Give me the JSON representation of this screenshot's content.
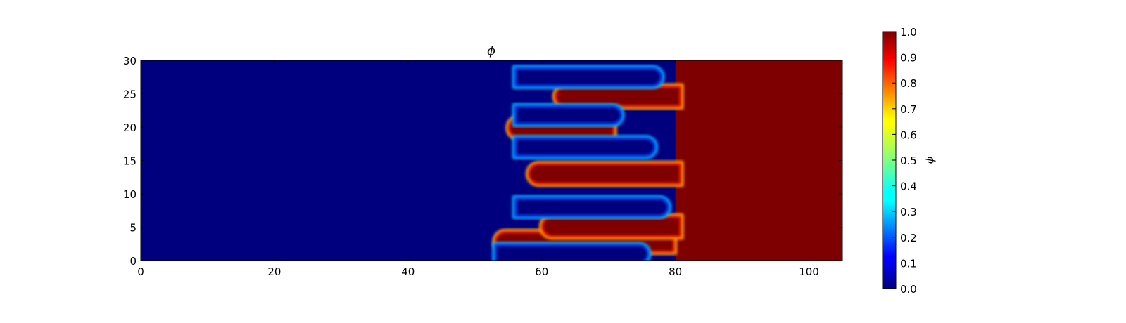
{
  "chart_data": {
    "type": "heatmap",
    "title": "ϕ",
    "xlabel": "",
    "ylabel": "",
    "xlim": [
      0,
      105
    ],
    "ylim": [
      0,
      30
    ],
    "x_ticks": [
      0,
      20,
      40,
      60,
      80,
      100
    ],
    "y_ticks": [
      0,
      5,
      10,
      15,
      20,
      25,
      30
    ],
    "colormap": "jet",
    "low_color": "#00007f",
    "high_color": "#7f0000",
    "colorbar": {
      "label": "ϕ",
      "range": [
        0,
        1
      ],
      "ticks": [
        "0.0",
        "0.1",
        "0.2",
        "0.3",
        "0.4",
        "0.5",
        "0.6",
        "0.7",
        "0.8",
        "0.9",
        "1.0"
      ]
    },
    "field_description": "Blue phase (ϕ=0) for x < ~55, red phase (ϕ=1) for x > ~80, with interleaved fingers in between.",
    "red_fingers": [
      {
        "y": 2.8,
        "x_tip": 53,
        "x_base": 79
      },
      {
        "y": 5.1,
        "x_tip": 60,
        "x_base": 80
      },
      {
        "y": 13.0,
        "x_tip": 58,
        "x_base": 80
      },
      {
        "y": 19.9,
        "x_tip": 55,
        "x_base": 70
      },
      {
        "y": 24.6,
        "x_tip": 62,
        "x_base": 80
      }
    ],
    "blue_fingers": [
      {
        "y": 1.0,
        "x_start": 53,
        "x_tip": 76
      },
      {
        "y": 8.0,
        "x_start": 56,
        "x_tip": 79
      },
      {
        "y": 17.0,
        "x_start": 56,
        "x_tip": 77
      },
      {
        "y": 21.8,
        "x_start": 56,
        "x_tip": 72
      },
      {
        "y": 27.5,
        "x_start": 56,
        "x_tip": 78
      }
    ]
  }
}
